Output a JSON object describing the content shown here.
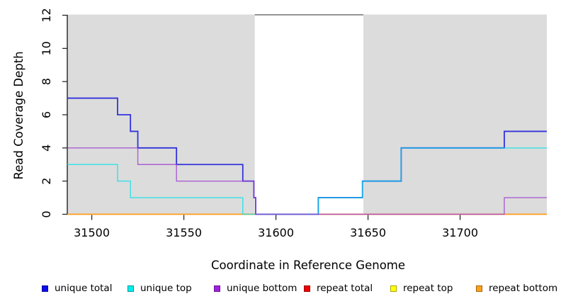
{
  "chart_data": {
    "type": "line",
    "subtype": "step",
    "title": "",
    "xlabel": "Coordinate in Reference Genome",
    "ylabel": "Read Coverage Depth",
    "xlim": [
      31486.7,
      31747.1
    ],
    "ylim": [
      0,
      12
    ],
    "xticks": [
      31500,
      31550,
      31600,
      31650,
      31700
    ],
    "yticks": [
      0,
      2,
      4,
      6,
      8,
      10,
      12
    ],
    "grid": "off",
    "background_shading": {
      "shaded_color": "#dcdcdc",
      "regions": [
        [
          31486.7,
          31588.5
        ],
        [
          31647.5,
          31747.1
        ]
      ],
      "gap_region": [
        31588.5,
        31647.5
      ],
      "gap_top_line_value": 12,
      "gap_top_line_color": "#868686"
    },
    "series": [
      {
        "name": "repeat total",
        "color": "#dd2222",
        "width": 1.2,
        "opacity": 1,
        "steps": [
          [
            31486.7,
            0
          ]
        ]
      },
      {
        "name": "repeat top",
        "color": "#ffee22",
        "width": 1.2,
        "opacity": 1,
        "steps": [
          [
            31486.7,
            0
          ]
        ]
      },
      {
        "name": "repeat bottom",
        "color": "#ff9912",
        "width": 1.5,
        "opacity": 1,
        "steps": [
          [
            31486.7,
            0
          ]
        ]
      },
      {
        "name": "unique total",
        "color": "#3232dc",
        "width": 1.8,
        "opacity": 1,
        "steps": [
          [
            31486.7,
            7
          ],
          [
            31514,
            6
          ],
          [
            31521,
            5
          ],
          [
            31525,
            4
          ],
          [
            31546,
            3
          ],
          [
            31582,
            2
          ],
          [
            31588,
            1
          ],
          [
            31589,
            0
          ],
          [
            31623,
            1
          ],
          [
            31647,
            2
          ],
          [
            31668,
            4
          ],
          [
            31724,
            5
          ]
        ]
      },
      {
        "name": "unique top",
        "color": "#00e1e8",
        "width": 1.5,
        "opacity": 0.7,
        "steps": [
          [
            31486.7,
            3
          ],
          [
            31514,
            2
          ],
          [
            31521,
            1
          ],
          [
            31582,
            0
          ],
          [
            31623,
            1
          ],
          [
            31647,
            2
          ],
          [
            31668,
            4
          ]
        ]
      },
      {
        "name": "unique bottom",
        "color": "#9e40d0",
        "width": 1.4,
        "opacity": 0.8,
        "steps": [
          [
            31486.7,
            4
          ],
          [
            31525,
            3
          ],
          [
            31546,
            2
          ],
          [
            31588,
            1
          ],
          [
            31589,
            0
          ],
          [
            31724,
            1
          ]
        ]
      }
    ],
    "legend": [
      {
        "label": "unique total",
        "color": "#0d0dee"
      },
      {
        "label": "unique top",
        "color": "#00eeee"
      },
      {
        "label": "unique bottom",
        "color": "#a020e0"
      },
      {
        "label": "repeat total",
        "color": "#ee0000"
      },
      {
        "label": "repeat top",
        "color": "#ffff00"
      },
      {
        "label": "repeat bottom",
        "color": "#ffa019"
      }
    ],
    "legend_position": "bottom"
  }
}
